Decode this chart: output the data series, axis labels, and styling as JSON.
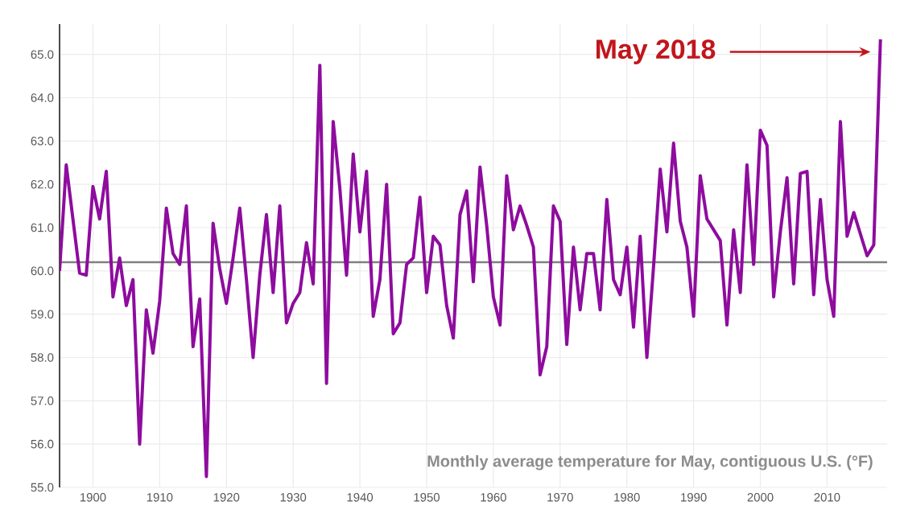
{
  "chart_data": {
    "type": "line",
    "x": [
      1895,
      1896,
      1897,
      1898,
      1899,
      1900,
      1901,
      1902,
      1903,
      1904,
      1905,
      1906,
      1907,
      1908,
      1909,
      1910,
      1911,
      1912,
      1913,
      1914,
      1915,
      1916,
      1917,
      1918,
      1919,
      1920,
      1921,
      1922,
      1923,
      1924,
      1925,
      1926,
      1927,
      1928,
      1929,
      1930,
      1931,
      1932,
      1933,
      1934,
      1935,
      1936,
      1937,
      1938,
      1939,
      1940,
      1941,
      1942,
      1943,
      1944,
      1945,
      1946,
      1947,
      1948,
      1949,
      1950,
      1951,
      1952,
      1953,
      1954,
      1955,
      1956,
      1957,
      1958,
      1959,
      1960,
      1961,
      1962,
      1963,
      1964,
      1965,
      1966,
      1967,
      1968,
      1969,
      1970,
      1971,
      1972,
      1973,
      1974,
      1975,
      1976,
      1977,
      1978,
      1979,
      1980,
      1981,
      1982,
      1983,
      1984,
      1985,
      1986,
      1987,
      1988,
      1989,
      1990,
      1991,
      1992,
      1993,
      1994,
      1995,
      1996,
      1997,
      1998,
      1999,
      2000,
      2001,
      2002,
      2003,
      2004,
      2005,
      2006,
      2007,
      2008,
      2009,
      2010,
      2011,
      2012,
      2013,
      2014,
      2015,
      2016,
      2017,
      2018
    ],
    "series": [
      {
        "color": "#8e0c9e",
        "values": [
          60.0,
          62.45,
          61.2,
          59.95,
          59.9,
          61.95,
          61.2,
          62.3,
          59.4,
          60.3,
          59.2,
          59.8,
          56.0,
          59.1,
          58.1,
          59.3,
          61.45,
          60.4,
          60.15,
          61.5,
          58.25,
          59.35,
          55.25,
          61.1,
          60.05,
          59.25,
          60.3,
          61.45,
          59.8,
          58.0,
          59.9,
          61.3,
          59.5,
          61.5,
          58.8,
          59.25,
          59.5,
          60.65,
          59.7,
          64.75,
          57.4,
          63.45,
          61.9,
          59.9,
          62.7,
          60.9,
          62.3,
          58.95,
          59.8,
          62.0,
          58.55,
          58.8,
          60.15,
          60.3,
          61.7,
          59.5,
          60.8,
          60.6,
          59.2,
          58.45,
          61.3,
          61.85,
          59.75,
          62.4,
          61.05,
          59.4,
          58.75,
          62.2,
          60.95,
          61.5,
          61.05,
          60.55,
          57.6,
          58.25,
          61.5,
          61.15,
          58.3,
          60.55,
          59.1,
          60.4,
          60.4,
          59.1,
          61.65,
          59.8,
          59.45,
          60.55,
          58.7,
          60.8,
          58.0,
          60.1,
          62.35,
          60.9,
          62.95,
          61.15,
          60.55,
          58.95,
          62.2,
          61.2,
          60.95,
          60.7,
          58.75,
          60.95,
          59.5,
          62.45,
          60.15,
          63.25,
          62.9,
          59.4,
          60.9,
          62.15,
          59.7,
          62.25,
          62.3,
          59.45,
          61.65,
          59.8,
          58.95,
          63.45,
          60.8,
          61.35,
          60.85,
          60.35,
          60.6,
          65.35
        ]
      }
    ],
    "xlim": [
      1895,
      2019
    ],
    "ylim": [
      55,
      65.7
    ],
    "xticks": [
      1900,
      1910,
      1920,
      1930,
      1940,
      1950,
      1960,
      1970,
      1980,
      1990,
      2000,
      2010
    ],
    "yticks": [
      {
        "value": 55,
        "label": "55.0"
      },
      {
        "value": 56,
        "label": "56.0"
      },
      {
        "value": 57,
        "label": "57.0"
      },
      {
        "value": 58,
        "label": "58.0"
      },
      {
        "value": 59,
        "label": "59.0"
      },
      {
        "value": 60,
        "label": "60.0"
      },
      {
        "value": 61,
        "label": "61.0"
      },
      {
        "value": 62,
        "label": "62.0"
      },
      {
        "value": 63,
        "label": "63.0"
      },
      {
        "value": 64,
        "label": "64.0"
      },
      {
        "value": 65,
        "label": "65.0"
      }
    ],
    "grid": true,
    "legend": false,
    "line_style": "solid",
    "marker": "none",
    "ref_lines": [
      {
        "axis": "y",
        "value": 60.2,
        "color": "#808080"
      }
    ],
    "annotations": [
      "May 2018",
      "Monthly average temperature for May, contiguous U.S. (°F)"
    ]
  }
}
